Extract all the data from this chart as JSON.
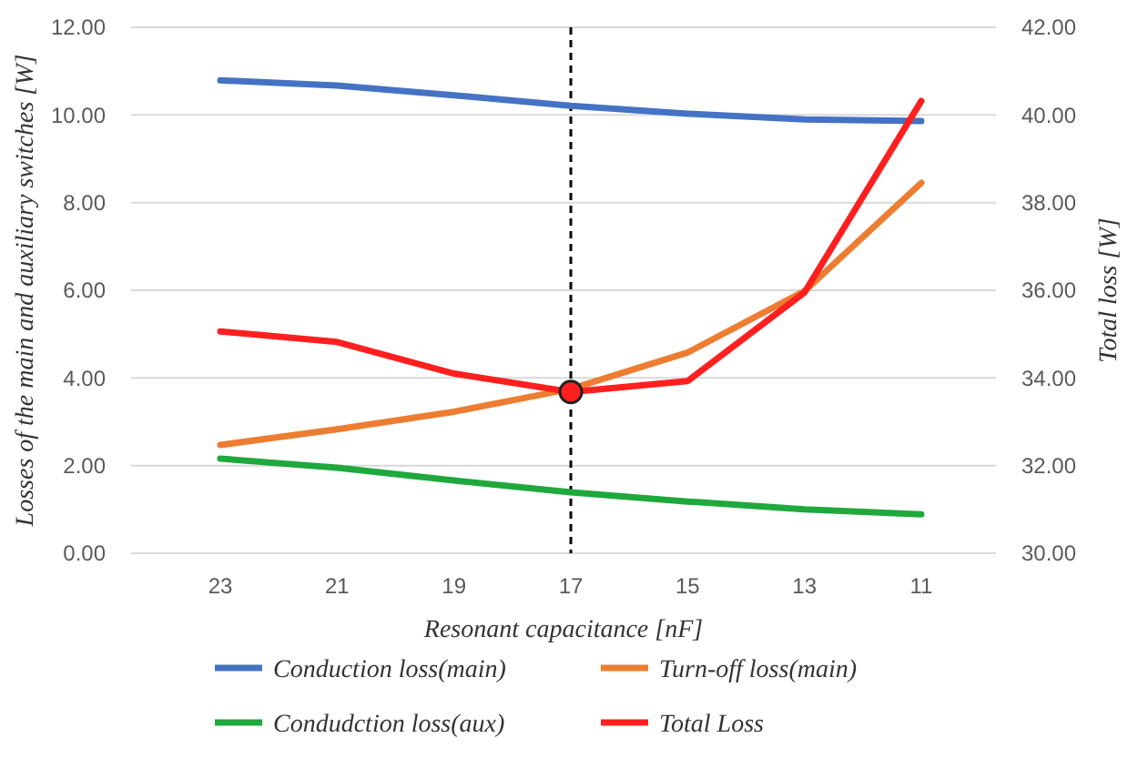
{
  "chart_data": {
    "type": "line",
    "xlabel": "Resonant capacitance [nF]",
    "ylabel": "Losses of the main and auxiliary switches [W]",
    "y2label": "Total loss [W]",
    "categories": [
      "23",
      "21",
      "19",
      "17",
      "15",
      "13",
      "11"
    ],
    "series": [
      {
        "name": "Conduction loss(main)",
        "color": "#4472c4",
        "values": [
          10.79,
          10.67,
          10.45,
          10.21,
          10.03,
          9.9,
          9.86
        ]
      },
      {
        "name": "Turn-off loss(main)",
        "color": "#ed7d31",
        "values": [
          2.47,
          2.83,
          3.23,
          3.75,
          4.58,
          5.98,
          8.45
        ]
      },
      {
        "name": "Condudction loss(aux)",
        "color": "#1fa83c",
        "values": [
          2.16,
          1.95,
          1.66,
          1.39,
          1.18,
          1.0,
          0.89
        ]
      },
      {
        "name": "Total Loss",
        "color": "#ff1f1f",
        "axis": "y2",
        "values": [
          35.06,
          34.82,
          34.1,
          33.68,
          33.93,
          35.95,
          40.32
        ]
      },
      {
        "type": "scatter",
        "color": "#ff1f1f",
        "axis": "y2",
        "marker": "circle",
        "x": [
          "17"
        ],
        "values": [
          33.68
        ]
      }
    ],
    "ylim": [
      0,
      12
    ],
    "yticks": [
      {
        "value": 0,
        "label": "0.00"
      },
      {
        "value": 2,
        "label": "2.00"
      },
      {
        "value": 4,
        "label": "4.00"
      },
      {
        "value": 6,
        "label": "6.00"
      },
      {
        "value": 8,
        "label": "8.00"
      },
      {
        "value": 10,
        "label": "10.00"
      },
      {
        "value": 12,
        "label": "12.00"
      }
    ],
    "y2lim": [
      30,
      42
    ],
    "y2ticks": [
      {
        "value": 30,
        "label": "30.00"
      },
      {
        "value": 32,
        "label": "32.00"
      },
      {
        "value": 34,
        "label": "34.00"
      },
      {
        "value": 36,
        "label": "36.00"
      },
      {
        "value": 38,
        "label": "38.00"
      },
      {
        "value": 40,
        "label": "40.00"
      },
      {
        "value": 42,
        "label": "42.00"
      }
    ],
    "ref_lines": [
      {
        "axis": "x",
        "value": "17",
        "color": "#000000",
        "line_style": "dashed"
      }
    ],
    "grid": "y",
    "legend": "bottom",
    "marker": "none",
    "line_style": "solid"
  }
}
